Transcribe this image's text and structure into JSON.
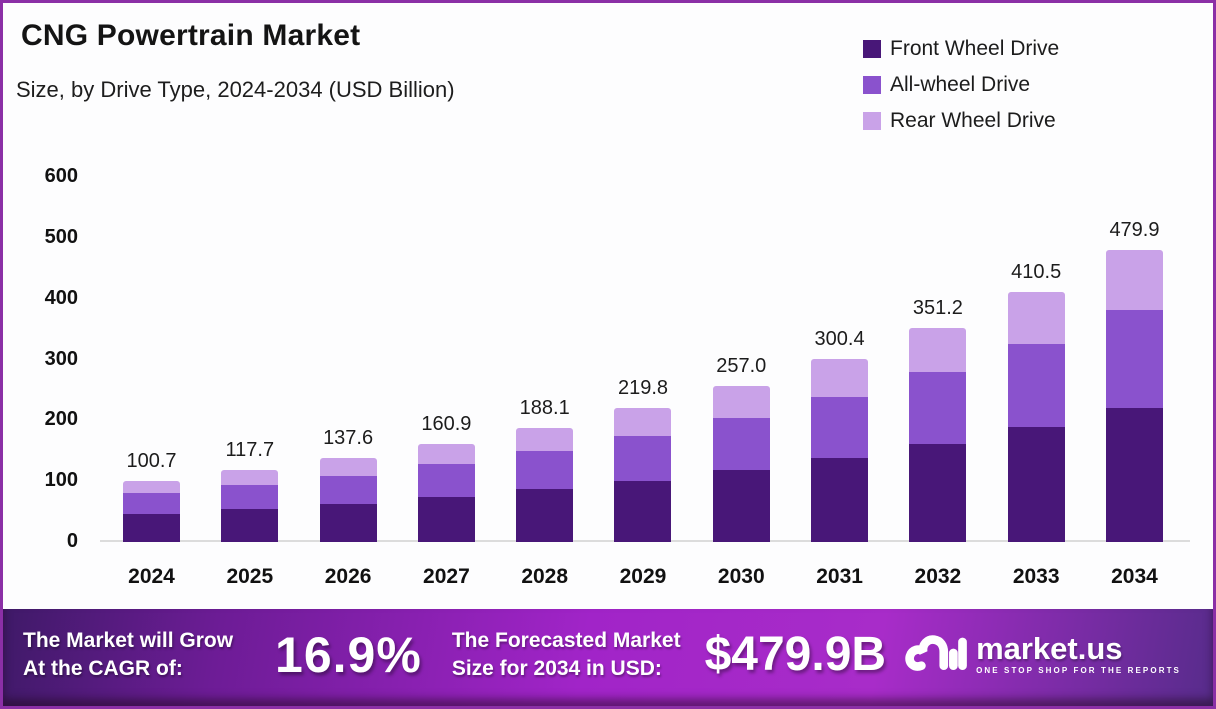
{
  "colors": {
    "frame_border": "#8b2fa6",
    "front_wheel_drive": "#481778",
    "all_wheel_drive": "#8a52cd",
    "rear_wheel_drive": "#c9a2e8",
    "banner_gradient_left": "#3f1a68",
    "banner_gradient_mid": "#a124c8",
    "banner_gradient_right": "#572c8b",
    "axis_line": "#dcdcdc"
  },
  "header": {
    "title": "CNG Powertrain Market",
    "subtitle": "Size, by Drive Type, 2024-2034 (USD Billion)"
  },
  "legend": [
    {
      "label": "Front Wheel Drive",
      "color": "#481778"
    },
    {
      "label": "All-wheel Drive",
      "color": "#8a52cd"
    },
    {
      "label": "Rear Wheel Drive",
      "color": "#c9a2e8"
    }
  ],
  "chart_data": {
    "type": "bar",
    "stacked": true,
    "title": "CNG Powertrain Market Size, by Drive Type, 2024-2034 (USD Billion)",
    "xlabel": "",
    "ylabel": "",
    "categories": [
      "2024",
      "2025",
      "2026",
      "2027",
      "2028",
      "2029",
      "2030",
      "2031",
      "2032",
      "2033",
      "2034"
    ],
    "totals": [
      100.7,
      117.7,
      137.6,
      160.9,
      188.1,
      219.8,
      257.0,
      300.4,
      351.2,
      410.5,
      479.9
    ],
    "series": [
      {
        "name": "Front Wheel Drive",
        "color": "#481778",
        "values": [
          46.3,
          54.1,
          63.3,
          74.0,
          86.5,
          101.1,
          118.2,
          138.2,
          161.6,
          188.8,
          220.8
        ]
      },
      {
        "name": "All-wheel Drive",
        "color": "#8a52cd",
        "values": [
          33.7,
          39.4,
          46.1,
          53.9,
          63.0,
          73.6,
          86.1,
          100.6,
          117.7,
          137.5,
          160.8
        ]
      },
      {
        "name": "Rear Wheel Drive",
        "color": "#c9a2e8",
        "values": [
          20.7,
          24.2,
          28.2,
          33.0,
          38.6,
          45.1,
          52.7,
          61.6,
          71.9,
          84.2,
          98.3
        ]
      }
    ],
    "y_ticks": [
      0,
      100,
      200,
      300,
      400,
      500,
      600
    ],
    "ylim": [
      0,
      600
    ],
    "grid": false,
    "legend_position": "top-right"
  },
  "banner": {
    "cagr_label_line1": "The Market will Grow",
    "cagr_label_line2": "At the CAGR of:",
    "cagr_value": "16.9%",
    "forecast_label_line1": "The Forecasted Market",
    "forecast_label_line2": "Size for 2034 in USD:",
    "forecast_value": "$479.9B",
    "brand_name": "market.us",
    "brand_tagline": "ONE STOP SHOP FOR THE REPORTS"
  }
}
